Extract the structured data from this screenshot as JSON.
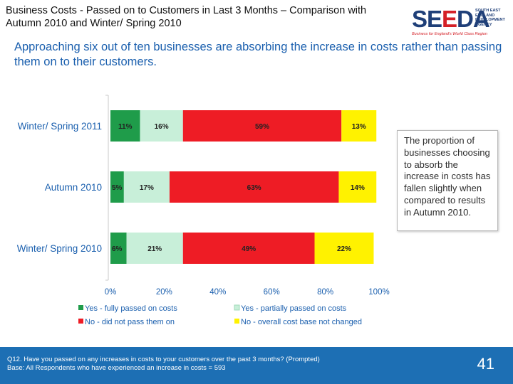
{
  "header": {
    "title": "Business Costs - Passed on to Customers in Last 3 Months – Comparison with Autumn 2010 and Winter/ Spring 2010",
    "logo_text": "SEEDA",
    "logo_agency_lines": [
      "SOUTH EAST",
      "ENGLAND",
      "DEVELOPMENT",
      "AGENCY"
    ],
    "logo_tagline": "Business for England's World Class Region"
  },
  "subtitle": "Approaching six out of ten businesses are absorbing the increase in costs rather than passing them on to their customers.",
  "callout": "The proportion of businesses choosing to absorb the increase in costs has fallen slightly when compared to results in Autumn 2010.",
  "chart_data": {
    "type": "bar",
    "orientation": "horizontal",
    "stacked": true,
    "categories": [
      "Winter/ Spring 2011",
      "Autumn 2010",
      "Winter/ Spring 2010"
    ],
    "series": [
      {
        "name": "Yes - fully passed on costs",
        "color": "#1f9c4a",
        "values": [
          11,
          5,
          6
        ],
        "labels": [
          "11%",
          "5%",
          "6%"
        ]
      },
      {
        "name": "Yes - partially passed on costs",
        "color": "#c8efd9",
        "values": [
          16,
          17,
          21
        ],
        "labels": [
          "16%",
          "17%",
          "21%"
        ]
      },
      {
        "name": "No - did not pass them on",
        "color": "#ee1c25",
        "values": [
          59,
          63,
          49
        ],
        "labels": [
          "59%",
          "63%",
          "49%"
        ]
      },
      {
        "name": "No - overall cost base not changed",
        "color": "#fff200",
        "values": [
          13,
          14,
          22
        ],
        "labels": [
          "13%",
          "14%",
          "22%"
        ]
      }
    ],
    "xlim": [
      0,
      100
    ],
    "xticks": [
      "0%",
      "20%",
      "40%",
      "60%",
      "80%",
      "100%"
    ],
    "legend_position": "bottom",
    "grid": false
  },
  "footer": {
    "question": "Q12. Have you passed on any increases in costs to your customers over the past 3 months? (Prompted)",
    "base": "Base: All Respondents who have experienced an increase in costs = 593",
    "page_number": "41"
  }
}
